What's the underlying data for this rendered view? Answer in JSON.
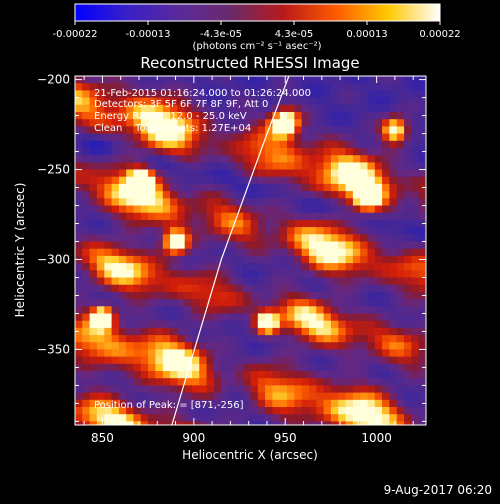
{
  "colorbar": {
    "ticks": [
      "-0.00022",
      "-0.00013",
      "-4.3e-05",
      "4.3e-05",
      "0.00013",
      "0.00022"
    ],
    "units": "(photons cm⁻² s⁻¹ asec⁻²)",
    "palette": [
      "#0000ff",
      "#3a1fc8",
      "#5a2a9a",
      "#6a2a6a",
      "#b81a1a",
      "#ff5a00",
      "#ffc800",
      "#ffffff"
    ]
  },
  "chart_data": {
    "type": "heatmap",
    "title": "Reconstructed RHESSI Image",
    "xlabel": "Heliocentric X (arcsec)",
    "ylabel": "Heliocentric Y (arcsec)",
    "xlim": [
      835,
      1027
    ],
    "ylim": [
      -392,
      -198
    ],
    "xticks": [
      850,
      900,
      950,
      1000
    ],
    "yticks": [
      -200,
      -250,
      -300,
      -350
    ],
    "xtick_labels": [
      "850",
      "900",
      "950",
      "1000"
    ],
    "ytick_labels": [
      "−200",
      "−250",
      "−300",
      "−350"
    ],
    "annotations": [
      "21-Feb-2015 01:16:24.000 to 01:26:24.000",
      "Detectors: 3F 5F 6F 7F 8F 9F, Att 0",
      "Energy Range: 12.0 - 25.0 keV",
      "Clean    Total counts: 1.27E+04"
    ],
    "peak_label": "Position of Peak: = [871,-256]",
    "peak": [
      871,
      -256
    ],
    "limb_curve": [
      [
        888,
        -392
      ],
      [
        915,
        -300
      ],
      [
        939,
        -233
      ],
      [
        952,
        -198
      ]
    ],
    "value_range": [
      -0.00022,
      0.00022
    ],
    "grid": false,
    "stripes": [
      {
        "y0": -212,
        "slope": -0.28,
        "amp": 0.95,
        "width": 15,
        "phase": 0.7
      },
      {
        "y0": -255,
        "slope": -0.28,
        "amp": 0.9,
        "width": 13,
        "phase": 1.9
      },
      {
        "y0": -298,
        "slope": -0.28,
        "amp": 0.8,
        "width": 12,
        "phase": 2.6
      },
      {
        "y0": -342,
        "slope": -0.28,
        "amp": 0.95,
        "width": 14,
        "phase": 0.2
      },
      {
        "y0": -384,
        "slope": -0.28,
        "amp": 0.85,
        "width": 12,
        "phase": 3.1
      }
    ],
    "hotspots": [
      {
        "x": 871,
        "y": -256,
        "amp": 1.0,
        "r": 6
      },
      {
        "x": 950,
        "y": -224,
        "amp": 1.0,
        "r": 8
      },
      {
        "x": 1010,
        "y": -228,
        "amp": 0.9,
        "r": 7
      },
      {
        "x": 995,
        "y": -265,
        "amp": 0.9,
        "r": 6
      },
      {
        "x": 890,
        "y": -290,
        "amp": 0.95,
        "r": 7
      },
      {
        "x": 850,
        "y": -332,
        "amp": 0.9,
        "r": 6
      },
      {
        "x": 940,
        "y": -335,
        "amp": 0.9,
        "r": 6
      }
    ]
  },
  "footer": {
    "date": "9-Aug-2017 06:20"
  }
}
